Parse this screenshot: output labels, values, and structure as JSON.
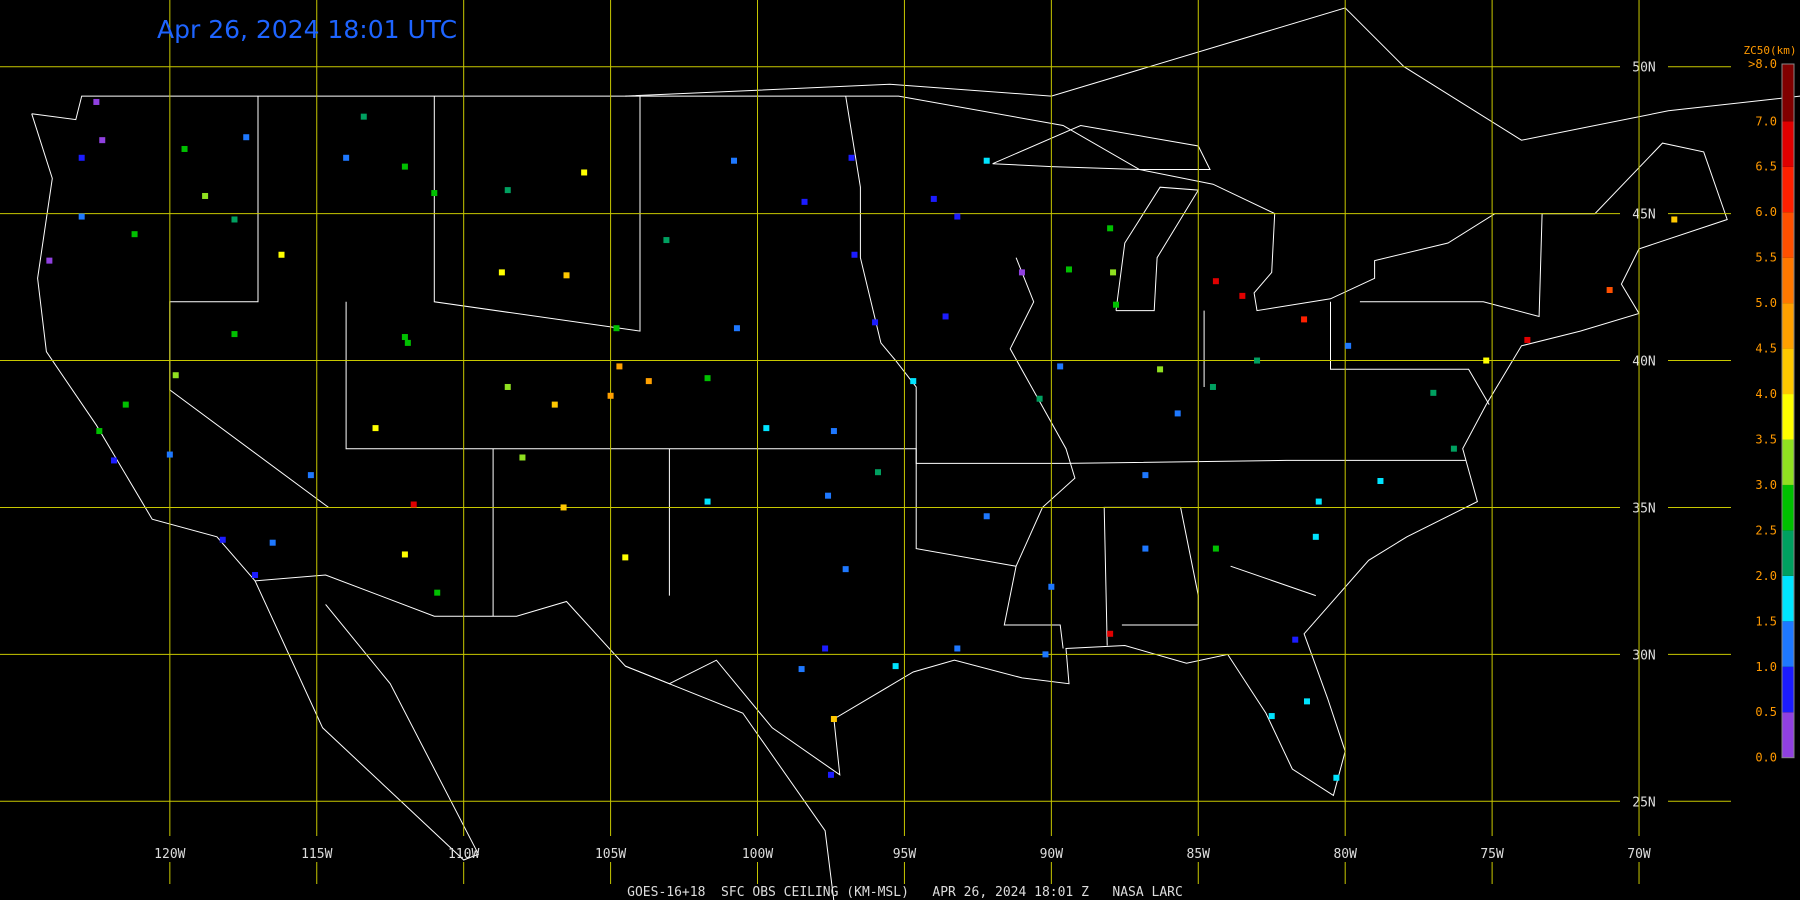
{
  "header": {
    "title": "Apr 26, 2024 18:01 UTC"
  },
  "footer": {
    "caption": "GOES-16+18  SFC OBS CEILING (KM-MSL)   APR 26, 2024 18:01 Z   NASA LARC"
  },
  "map": {
    "lon_range": [
      -125.78,
      -66.87
    ],
    "lat_range": [
      52.27,
      21.64
    ],
    "lat_lines": [
      {
        "value": 50,
        "label": "50N"
      },
      {
        "value": 45,
        "label": "45N"
      },
      {
        "value": 40,
        "label": "40N"
      },
      {
        "value": 35,
        "label": "35N"
      },
      {
        "value": 30,
        "label": "30N"
      },
      {
        "value": 25,
        "label": "25N"
      }
    ],
    "lon_lines": [
      {
        "value": -120,
        "label": "120W"
      },
      {
        "value": -115,
        "label": "115W"
      },
      {
        "value": -110,
        "label": "110W"
      },
      {
        "value": -105,
        "label": "105W"
      },
      {
        "value": -100,
        "label": "100W"
      },
      {
        "value": -95,
        "label": "95W"
      },
      {
        "value": -90,
        "label": "90W"
      },
      {
        "value": -85,
        "label": "85W"
      },
      {
        "value": -80,
        "label": "80W"
      },
      {
        "value": -75,
        "label": "75W"
      },
      {
        "value": -70,
        "label": "70W"
      }
    ],
    "stations": [
      {
        "lon": -122.3,
        "lat": 47.5,
        "value": 0.3
      },
      {
        "lon": -122.5,
        "lat": 48.8,
        "value": 0.4
      },
      {
        "lon": -117.4,
        "lat": 47.6,
        "value": 1.2
      },
      {
        "lon": -119.5,
        "lat": 47.2,
        "value": 2.5
      },
      {
        "lon": -123,
        "lat": 46.9,
        "value": 0.9
      },
      {
        "lon": -123,
        "lat": 44.9,
        "value": 1.1
      },
      {
        "lon": -121.2,
        "lat": 44.3,
        "value": 2.7
      },
      {
        "lon": -118.8,
        "lat": 45.6,
        "value": 3.2
      },
      {
        "lon": -117.8,
        "lat": 44.8,
        "value": 2.2
      },
      {
        "lon": -124.1,
        "lat": 43.4,
        "value": 0.3
      },
      {
        "lon": -122.4,
        "lat": 37.6,
        "value": 2.6
      },
      {
        "lon": -121.5,
        "lat": 38.5,
        "value": 2.7
      },
      {
        "lon": -120,
        "lat": 36.8,
        "value": 1.1
      },
      {
        "lon": -118.2,
        "lat": 33.9,
        "value": 0.8
      },
      {
        "lon": -117.1,
        "lat": 32.7,
        "value": 0.9
      },
      {
        "lon": -119.8,
        "lat": 39.5,
        "value": 3.4
      },
      {
        "lon": -121.9,
        "lat": 36.6,
        "value": 0.9
      },
      {
        "lon": -116.5,
        "lat": 33.8,
        "value": 1.2
      },
      {
        "lon": -116.2,
        "lat": 43.6,
        "value": 3.8
      },
      {
        "lon": -112,
        "lat": 46.6,
        "value": 2.6
      },
      {
        "lon": -108.5,
        "lat": 45.8,
        "value": 2.2
      },
      {
        "lon": -114,
        "lat": 46.9,
        "value": 1.4
      },
      {
        "lon": -111,
        "lat": 45.7,
        "value": 2.8
      },
      {
        "lon": -105.9,
        "lat": 46.4,
        "value": 3.5
      },
      {
        "lon": -113.4,
        "lat": 48.3,
        "value": 2.4
      },
      {
        "lon": -115.2,
        "lat": 36.1,
        "value": 1.4
      },
      {
        "lon": -112,
        "lat": 40.8,
        "value": 2.9
      },
      {
        "lon": -111.9,
        "lat": 40.6,
        "value": 2.7
      },
      {
        "lon": -113,
        "lat": 37.7,
        "value": 3.6
      },
      {
        "lon": -117.8,
        "lat": 40.9,
        "value": 2.9
      },
      {
        "lon": -106.5,
        "lat": 42.9,
        "value": 4.3
      },
      {
        "lon": -108.7,
        "lat": 43,
        "value": 3.5
      },
      {
        "lon": -104.8,
        "lat": 41.1,
        "value": 2.6
      },
      {
        "lon": -104.7,
        "lat": 39.8,
        "value": 4.6
      },
      {
        "lon": -105,
        "lat": 38.8,
        "value": 4.5
      },
      {
        "lon": -106.9,
        "lat": 38.5,
        "value": 4.2
      },
      {
        "lon": -103.7,
        "lat": 39.3,
        "value": 4.8
      },
      {
        "lon": -108.5,
        "lat": 39.1,
        "value": 3.3
      },
      {
        "lon": -112,
        "lat": 33.4,
        "value": 3.6
      },
      {
        "lon": -110.9,
        "lat": 32.1,
        "value": 2.7
      },
      {
        "lon": -106.6,
        "lat": 35,
        "value": 4.4
      },
      {
        "lon": -104.5,
        "lat": 33.3,
        "value": 3.5
      },
      {
        "lon": -108,
        "lat": 36.7,
        "value": 3.4
      },
      {
        "lon": -111.7,
        "lat": 35.1,
        "value": 6.8
      },
      {
        "lon": -100.8,
        "lat": 46.8,
        "value": 1.1
      },
      {
        "lon": -96.8,
        "lat": 46.9,
        "value": 0.8
      },
      {
        "lon": -98.4,
        "lat": 45.4,
        "value": 0.7
      },
      {
        "lon": -103.1,
        "lat": 44.1,
        "value": 2.3
      },
      {
        "lon": -96.7,
        "lat": 43.6,
        "value": 0.8
      },
      {
        "lon": -100.7,
        "lat": 41.1,
        "value": 1.2
      },
      {
        "lon": -96,
        "lat": 41.3,
        "value": 0.9
      },
      {
        "lon": -97.4,
        "lat": 37.6,
        "value": 1.3
      },
      {
        "lon": -99.7,
        "lat": 37.7,
        "value": 1.8
      },
      {
        "lon": -101.7,
        "lat": 39.4,
        "value": 2.9
      },
      {
        "lon": -93.2,
        "lat": 44.9,
        "value": 0.9
      },
      {
        "lon": -92.2,
        "lat": 46.8,
        "value": 1.6
      },
      {
        "lon": -94,
        "lat": 45.5,
        "value": 0.8
      },
      {
        "lon": -93.6,
        "lat": 41.5,
        "value": 0.8
      },
      {
        "lon": -91,
        "lat": 43,
        "value": 0.4
      },
      {
        "lon": -89.4,
        "lat": 43.1,
        "value": 2.6
      },
      {
        "lon": -88,
        "lat": 44.5,
        "value": 2.8
      },
      {
        "lon": -87.9,
        "lat": 43,
        "value": 3.1
      },
      {
        "lon": -87.8,
        "lat": 41.9,
        "value": 2.7
      },
      {
        "lon": -89.7,
        "lat": 39.8,
        "value": 1.3
      },
      {
        "lon": -86.3,
        "lat": 39.7,
        "value": 3.4
      },
      {
        "lon": -84.5,
        "lat": 39.1,
        "value": 2.1
      },
      {
        "lon": -83,
        "lat": 40,
        "value": 2.2
      },
      {
        "lon": -84.4,
        "lat": 42.7,
        "value": 6.5
      },
      {
        "lon": -83.5,
        "lat": 42.2,
        "value": 6.8
      },
      {
        "lon": -81.4,
        "lat": 41.4,
        "value": 6.4
      },
      {
        "lon": -94.7,
        "lat": 39.3,
        "value": 1.6
      },
      {
        "lon": -90.4,
        "lat": 38.7,
        "value": 2.3
      },
      {
        "lon": -92.2,
        "lat": 34.7,
        "value": 1.1
      },
      {
        "lon": -97.6,
        "lat": 35.4,
        "value": 1.3
      },
      {
        "lon": -95.9,
        "lat": 36.2,
        "value": 2.2
      },
      {
        "lon": -97,
        "lat": 32.9,
        "value": 1.2
      },
      {
        "lon": -97.7,
        "lat": 30.2,
        "value": 0.9
      },
      {
        "lon": -95.3,
        "lat": 29.6,
        "value": 1.6
      },
      {
        "lon": -98.5,
        "lat": 29.5,
        "value": 1.1
      },
      {
        "lon": -101.7,
        "lat": 35.2,
        "value": 1.6
      },
      {
        "lon": -97.5,
        "lat": 25.9,
        "value": 0.8
      },
      {
        "lon": -97.4,
        "lat": 27.8,
        "value": 4.1
      },
      {
        "lon": -90.2,
        "lat": 30,
        "value": 1.2
      },
      {
        "lon": -93.2,
        "lat": 30.2,
        "value": 1.1
      },
      {
        "lon": -90,
        "lat": 32.3,
        "value": 1.4
      },
      {
        "lon": -86.8,
        "lat": 33.6,
        "value": 1.1
      },
      {
        "lon": -88,
        "lat": 30.7,
        "value": 6.8
      },
      {
        "lon": -84.4,
        "lat": 33.6,
        "value": 2.6
      },
      {
        "lon": -81,
        "lat": 34,
        "value": 1.7
      },
      {
        "lon": -80.9,
        "lat": 35.2,
        "value": 1.9
      },
      {
        "lon": -81.7,
        "lat": 30.5,
        "value": 0.5
      },
      {
        "lon": -81.3,
        "lat": 28.4,
        "value": 1.7
      },
      {
        "lon": -80.3,
        "lat": 25.8,
        "value": 1.6
      },
      {
        "lon": -82.5,
        "lat": 27.9,
        "value": 1.5
      },
      {
        "lon": -78.8,
        "lat": 35.9,
        "value": 1.6
      },
      {
        "lon": -86.8,
        "lat": 36.1,
        "value": 1.2
      },
      {
        "lon": -85.7,
        "lat": 38.2,
        "value": 1.4
      },
      {
        "lon": -77,
        "lat": 38.9,
        "value": 2.2
      },
      {
        "lon": -76.3,
        "lat": 37,
        "value": 2.1
      },
      {
        "lon": -79.9,
        "lat": 40.5,
        "value": 1.1
      },
      {
        "lon": -75.2,
        "lat": 40,
        "value": 3.8
      },
      {
        "lon": -73.8,
        "lat": 40.7,
        "value": 6.7
      },
      {
        "lon": -71,
        "lat": 42.4,
        "value": 5.5
      },
      {
        "lon": -68.8,
        "lat": 44.8,
        "value": 4.2
      }
    ]
  },
  "colorbar": {
    "title": "ZC50(km)",
    "top_label": ">8.0",
    "range": [
      0,
      7.63
    ],
    "ticks": [
      {
        "value": 0,
        "label": "0.0"
      },
      {
        "value": 0.5,
        "label": "0.5"
      },
      {
        "value": 1,
        "label": "1.0"
      },
      {
        "value": 1.5,
        "label": "1.5"
      },
      {
        "value": 2,
        "label": "2.0"
      },
      {
        "value": 2.5,
        "label": "2.5"
      },
      {
        "value": 3,
        "label": "3.0"
      },
      {
        "value": 3.5,
        "label": "3.5"
      },
      {
        "value": 4,
        "label": "4.0"
      },
      {
        "value": 4.5,
        "label": "4.5"
      },
      {
        "value": 5,
        "label": "5.0"
      },
      {
        "value": 5.5,
        "label": "5.5"
      },
      {
        "value": 6,
        "label": "6.0"
      },
      {
        "value": 6.5,
        "label": "6.5"
      },
      {
        "value": 7,
        "label": "7.0"
      }
    ],
    "colors": [
      "#9040e0",
      "#1c1cff",
      "#1e78ff",
      "#00e4ff",
      "#00a060",
      "#00c000",
      "#90e020",
      "#ffff00",
      "#ffc800",
      "#ffa000",
      "#ff7800",
      "#ff5000",
      "#ff2000",
      "#e00000",
      "#800000"
    ]
  }
}
